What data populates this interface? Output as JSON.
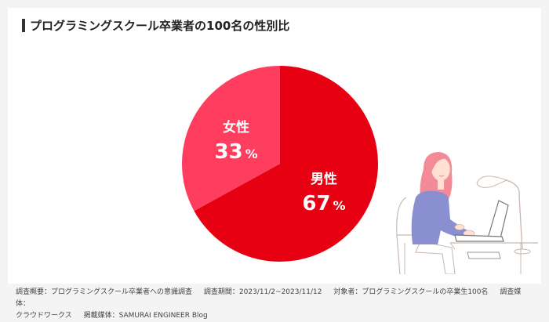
{
  "title": "プログラミングスクール卒業者の100名の性別比",
  "chart_data": {
    "type": "pie",
    "title": "プログラミングスクール卒業者の100名の性別比",
    "categories": [
      "男性",
      "女性"
    ],
    "values": [
      67,
      33
    ],
    "unit": "%",
    "colors": [
      "#e60012",
      "#ff3d5f"
    ]
  },
  "footer": {
    "line1": [
      "調査概要：プログラミングスクール卒業者への意識調査",
      "調査期間：2023/11/2~2023/11/12",
      "対象者：プログラミングスクールの卒業生100名",
      "調査媒体："
    ],
    "line2": [
      "クラウドワークス",
      "掲載媒体：SAMURAI ENGINEER Blog"
    ]
  }
}
